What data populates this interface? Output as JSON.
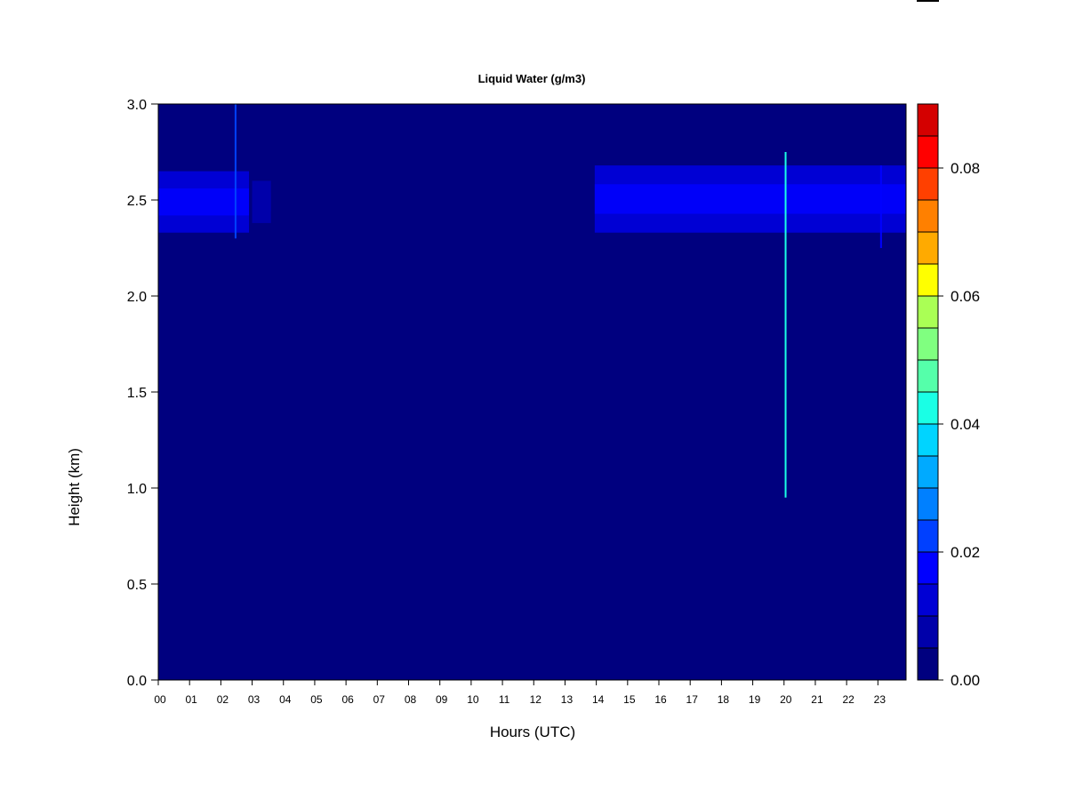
{
  "chart_data": {
    "type": "heatmap",
    "title": "Liquid Water (g/m3)",
    "xlabel": "Hours (UTC)",
    "ylabel": "Height (km)",
    "xlim": [
      0,
      23.9
    ],
    "ylim": [
      0,
      3.0
    ],
    "x_ticks": [
      0,
      1,
      2,
      3,
      4,
      5,
      6,
      7,
      8,
      9,
      10,
      11,
      12,
      13,
      14,
      15,
      16,
      17,
      18,
      19,
      20,
      21,
      22,
      23
    ],
    "x_tick_labels": [
      "00",
      "01",
      "02",
      "03",
      "04",
      "05",
      "06",
      "07",
      "08",
      "09",
      "10",
      "11",
      "12",
      "13",
      "14",
      "15",
      "16",
      "17",
      "18",
      "19",
      "20",
      "21",
      "22",
      "23"
    ],
    "y_ticks": [
      0.0,
      0.5,
      1.0,
      1.5,
      2.0,
      2.5,
      3.0
    ],
    "y_tick_labels": [
      "0.0",
      "0.5",
      "1.0",
      "1.5",
      "2.0",
      "2.5",
      "3.0"
    ],
    "background_value": 0.0,
    "colorbar": {
      "min": 0.0,
      "max": 0.09,
      "levels": [
        0.0,
        0.005,
        0.01,
        0.015,
        0.02,
        0.025,
        0.03,
        0.035,
        0.04,
        0.045,
        0.05,
        0.055,
        0.06,
        0.065,
        0.07,
        0.075,
        0.08,
        0.085,
        0.09
      ],
      "colors": [
        "#00007F",
        "#0000AA",
        "#0000D4",
        "#0000FF",
        "#0040FF",
        "#0080FF",
        "#00AAFF",
        "#00D4FF",
        "#1AFFE5",
        "#55FFAA",
        "#80FF80",
        "#AAFF55",
        "#FFFF00",
        "#FFAA00",
        "#FF8000",
        "#FF4000",
        "#FF0000",
        "#D40000",
        "#7F0000"
      ],
      "tick_values": [
        0.0,
        0.02,
        0.04,
        0.06,
        0.08
      ],
      "tick_labels": [
        "0.00",
        "0.02",
        "0.04",
        "0.06",
        "0.08"
      ]
    },
    "cloud_layers": [
      {
        "x_start": 0.0,
        "x_end": 2.9,
        "y_base": 2.33,
        "y_top": 2.65,
        "core_value": 0.015,
        "edge_value": 0.01
      },
      {
        "x_start": 3.0,
        "x_end": 3.6,
        "y_base": 2.38,
        "y_top": 2.6,
        "core_value": 0.008,
        "edge_value": 0.006
      },
      {
        "x_start": 13.95,
        "x_end": 23.9,
        "y_base": 2.33,
        "y_top": 2.68,
        "core_value": 0.017,
        "edge_value": 0.01
      }
    ],
    "spikes": [
      {
        "x": 2.47,
        "y_base": 2.3,
        "y_top": 3.0,
        "value": 0.02
      },
      {
        "x": 20.05,
        "y_base": 0.95,
        "y_top": 2.75,
        "value": 0.04
      },
      {
        "x": 23.1,
        "y_base": 2.25,
        "y_top": 2.68,
        "value": 0.015
      }
    ]
  }
}
